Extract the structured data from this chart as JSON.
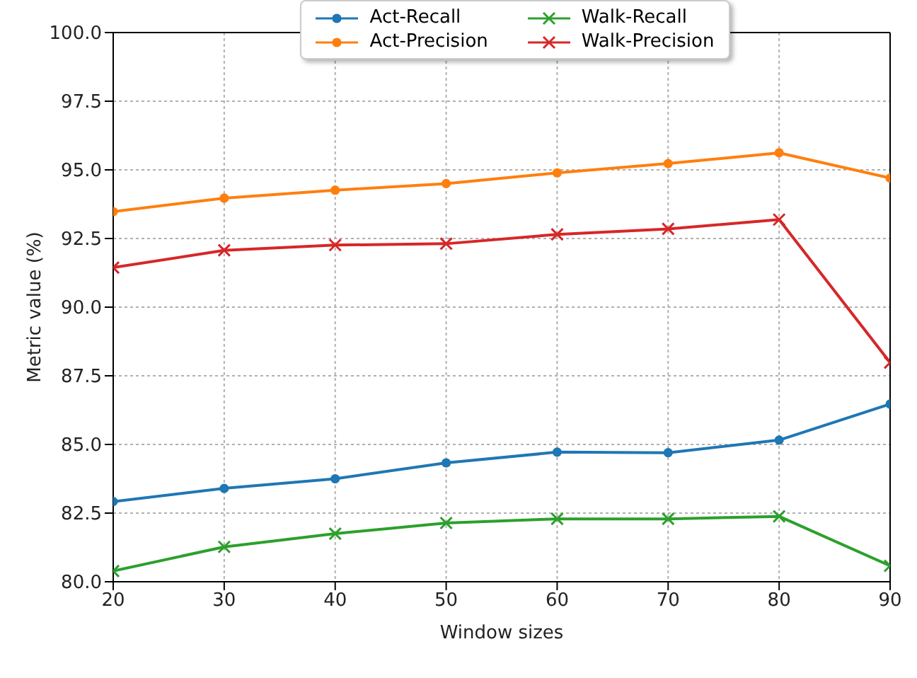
{
  "chart_data": {
    "type": "line",
    "xlabel": "Window sizes",
    "ylabel": "Metric value (%)",
    "x": [
      20,
      30,
      40,
      50,
      60,
      70,
      80,
      90
    ],
    "series": [
      {
        "name": "Act-Recall",
        "color": "#1f77b4",
        "marker": "circle",
        "values": [
          82.92,
          83.4,
          83.75,
          84.33,
          84.72,
          84.7,
          85.16,
          86.47
        ]
      },
      {
        "name": "Act-Precision",
        "color": "#ff7f0e",
        "marker": "circle",
        "values": [
          93.48,
          93.97,
          94.26,
          94.5,
          94.89,
          95.23,
          95.62,
          94.7
        ]
      },
      {
        "name": "Walk-Recall",
        "color": "#2ca02c",
        "marker": "cross",
        "values": [
          80.39,
          81.27,
          81.75,
          82.14,
          82.29,
          82.29,
          82.38,
          80.58
        ]
      },
      {
        "name": "Walk-Precision",
        "color": "#d62728",
        "marker": "cross",
        "values": [
          91.44,
          92.07,
          92.26,
          92.31,
          92.65,
          92.85,
          93.19,
          87.98
        ]
      }
    ],
    "xlim": [
      20,
      90
    ],
    "xticks": [
      20,
      30,
      40,
      50,
      60,
      70,
      80,
      90
    ],
    "ylim": [
      80,
      100
    ],
    "yticks": [
      {
        "value": 80,
        "label": "80.0"
      },
      {
        "value": 82.5,
        "label": "82.5"
      },
      {
        "value": 85,
        "label": "85.0"
      },
      {
        "value": 87.5,
        "label": "87.5"
      },
      {
        "value": 90,
        "label": "90.0"
      },
      {
        "value": 92.5,
        "label": "92.5"
      },
      {
        "value": 95,
        "label": "95.0"
      },
      {
        "value": 97.5,
        "label": "97.5"
      },
      {
        "value": 100,
        "label": "100.0"
      }
    ],
    "grid": true,
    "legend": "top",
    "line_style": "solid"
  }
}
